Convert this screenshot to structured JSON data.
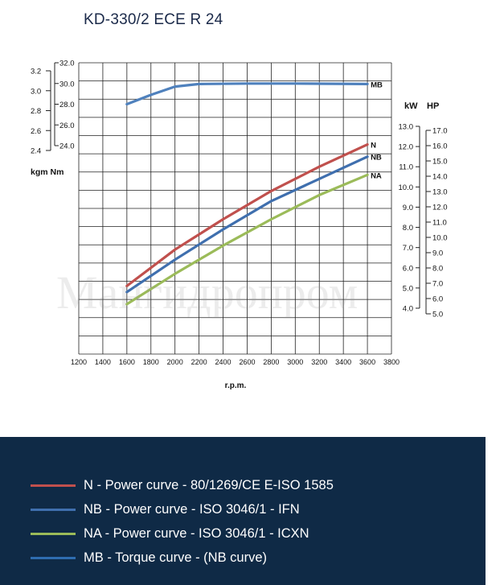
{
  "title": "KD-330/2 ECE R 24",
  "watermark": "Мангидропром",
  "chart_data": {
    "type": "line",
    "x_ticks": [
      1200,
      1400,
      1600,
      1800,
      2000,
      2200,
      2400,
      2600,
      2800,
      3000,
      3200,
      3400,
      3600,
      3800
    ],
    "xlim": [
      1200,
      3800
    ],
    "xlabel": "r.p.m.",
    "left_axis": {
      "label": "kgm  Nm",
      "nm_ticks": [
        "32.0",
        "30.0",
        "28.0",
        "26.0",
        "24.0"
      ],
      "nm_range": [
        24,
        32
      ],
      "kgm_ticks": [
        "3.2",
        "3.0",
        "2.8",
        "2.6",
        "2.4"
      ],
      "kgm_range": [
        2.4,
        3.2
      ]
    },
    "right_axis": {
      "label_kw": "kW",
      "label_hp": "HP",
      "kw_ticks": [
        "13.0",
        "12.0",
        "11.0",
        "10.0",
        "9.0",
        "8.0",
        "7.0",
        "6.0",
        "5.0",
        "4.0"
      ],
      "kw_range": [
        4,
        13
      ],
      "hp_ticks": [
        "17.0",
        "16.0",
        "15.0",
        "14.0",
        "13.0",
        "12.0",
        "11.0",
        "10.0",
        "9.0",
        "8.0",
        "7.0",
        "6.0",
        "5.0"
      ],
      "hp_range": [
        5,
        17
      ]
    },
    "grid": true,
    "series": [
      {
        "name": "N",
        "axis": "kW",
        "color": "#c0504d",
        "x": [
          1600,
          2000,
          2400,
          2800,
          3200,
          3600
        ],
        "y": [
          5.1,
          6.9,
          8.4,
          9.8,
          11.0,
          12.1
        ]
      },
      {
        "name": "NB",
        "axis": "kW",
        "color": "#3f6fae",
        "x": [
          1600,
          2000,
          2400,
          2800,
          3200,
          3600
        ],
        "y": [
          4.8,
          6.4,
          7.9,
          9.3,
          10.4,
          11.5
        ]
      },
      {
        "name": "NA",
        "axis": "kW",
        "color": "#9bbb59",
        "x": [
          1600,
          2000,
          2400,
          2800,
          3200,
          3600
        ],
        "y": [
          4.2,
          5.7,
          7.1,
          8.4,
          9.6,
          10.6
        ]
      },
      {
        "name": "MB",
        "axis": "Nm",
        "color": "#4f81bd",
        "x": [
          1600,
          1800,
          2000,
          2200,
          2600,
          3000,
          3600
        ],
        "y": [
          28.0,
          28.9,
          29.7,
          29.95,
          30.0,
          30.0,
          29.95
        ]
      }
    ]
  },
  "legend": [
    {
      "text": "N - Power curve - 80/1269/CE E-ISO 1585",
      "color": "#c0504d"
    },
    {
      "text": "NB - Power curve - ISO 3046/1 - IFN",
      "color": "#3f6fae"
    },
    {
      "text": "NA - Power curve - ISO 3046/1 - ICXN",
      "color": "#9bbb59"
    },
    {
      "text": "MB - Torque curve - (NB curve)",
      "color": "#2f6db0"
    }
  ]
}
